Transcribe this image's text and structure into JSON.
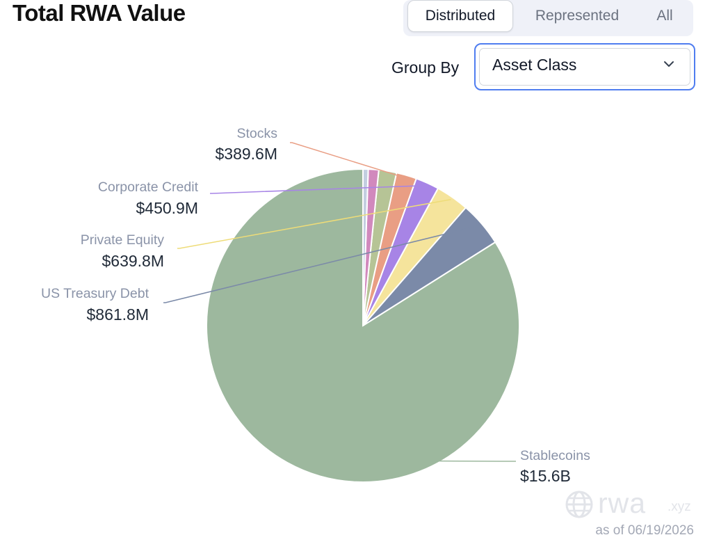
{
  "header": {
    "title": "Total RWA Value",
    "tabs": [
      {
        "label": "Distributed",
        "active": true
      },
      {
        "label": "Represented",
        "active": false
      },
      {
        "label": "All",
        "active": false
      }
    ],
    "group_by_label": "Group By",
    "group_by_value": "Asset Class"
  },
  "chart_data": {
    "type": "pie",
    "start": "top",
    "direction": "counterclockwise",
    "slices": [
      {
        "label": "Stablecoins",
        "value_label": "$15.6B",
        "value": 15600,
        "color": "#9db89e",
        "labeled": true
      },
      {
        "label": "US Treasury Debt",
        "value_label": "$861.8M",
        "value": 861.8,
        "color": "#7b8aa8",
        "labeled": true
      },
      {
        "label": "Private Equity",
        "value_label": "$639.8M",
        "value": 639.8,
        "color": "#f5e49c",
        "labeled": true
      },
      {
        "label": "Corporate Credit",
        "value_label": "$450.9M",
        "value": 450.9,
        "color": "#a784e6",
        "labeled": true
      },
      {
        "label": "Stocks",
        "value_label": "$389.6M",
        "value": 389.6,
        "color": "#e99e84",
        "labeled": true
      },
      {
        "label": "",
        "value": 340,
        "color": "#b6c496",
        "labeled": false
      },
      {
        "label": "",
        "value": 200,
        "color": "#d189bd",
        "labeled": false
      },
      {
        "label": "",
        "value": 100,
        "color": "#c3cee0",
        "labeled": false
      }
    ]
  },
  "watermark": {
    "brand": "rwa",
    "suffix": ".xyz",
    "icon": "globe-icon"
  },
  "as_of": "as of 06/19/2026"
}
